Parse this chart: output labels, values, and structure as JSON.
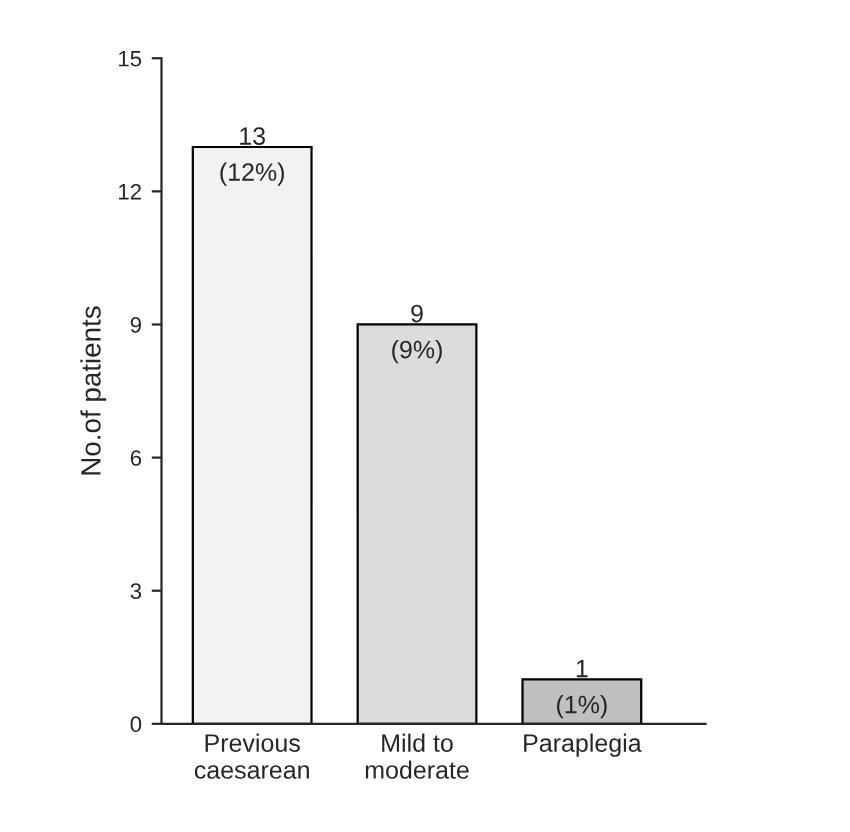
{
  "chart_data": {
    "type": "bar",
    "ylabel": "No.of patients",
    "categories": [
      "Previous\ncaesarean",
      "Mild to\nmoderate",
      "Paraplegia"
    ],
    "values": [
      13,
      9,
      1
    ],
    "colors": [
      "#f2f2f2",
      "#dcdcdc",
      "#bfbfbf"
    ],
    "value_labels": [
      "13\n(12%)",
      "9\n(9%)",
      "1\n(1%)"
    ],
    "ylim": [
      0,
      15
    ],
    "yticks": [
      0,
      3,
      6,
      9,
      12,
      15
    ],
    "grid": false,
    "legend": false
  }
}
